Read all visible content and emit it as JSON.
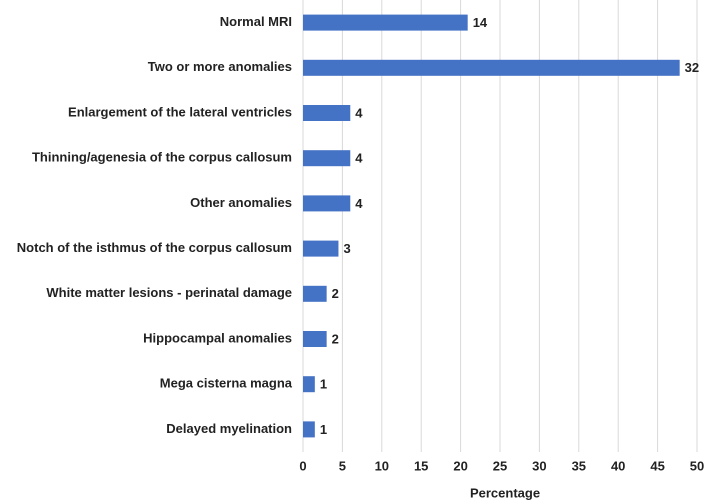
{
  "chart_data": {
    "type": "bar",
    "orientation": "horizontal",
    "categories": [
      "Normal MRI",
      "Two or more anomalies",
      "Enlargement of the lateral ventricles",
      "Thinning/agenesia of the corpus callosum",
      "Other anomalies",
      "Notch of the isthmus of the corpus callosum",
      "White matter lesions - perinatal damage",
      "Hippocampal anomalies",
      "Mega cisterna magna",
      "Delayed myelination"
    ],
    "values": [
      20.9,
      47.8,
      6.0,
      6.0,
      6.0,
      4.5,
      3.0,
      3.0,
      1.5,
      1.5
    ],
    "counts": [
      14,
      32,
      4,
      4,
      4,
      3,
      2,
      2,
      1,
      1
    ],
    "color": "#4472c4",
    "xlabel": "Percentage",
    "xlim": [
      0,
      50
    ],
    "xticks": [
      0,
      5,
      10,
      15,
      20,
      25,
      30,
      35,
      40,
      45,
      50
    ],
    "grid": true
  }
}
